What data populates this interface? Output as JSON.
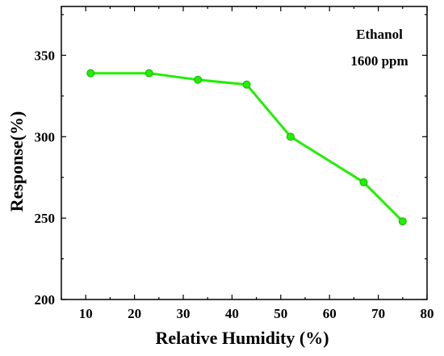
{
  "chart_data": {
    "type": "line",
    "xlabel": "Relative Humidity (%)",
    "ylabel": "Response(%)",
    "xlim": [
      5,
      80
    ],
    "ylim": [
      200,
      380
    ],
    "xticks": [
      10,
      20,
      30,
      40,
      50,
      60,
      70,
      80
    ],
    "yticks": [
      200,
      250,
      300,
      350
    ],
    "grid": false,
    "annotations": [
      "Ethanol",
      "1600 ppm"
    ],
    "series": [
      {
        "color": "#22ee00",
        "marker": "circle",
        "x": [
          11,
          23,
          33,
          43,
          52,
          67,
          75
        ],
        "y": [
          339,
          339,
          335,
          332,
          300,
          272,
          248
        ]
      }
    ]
  }
}
